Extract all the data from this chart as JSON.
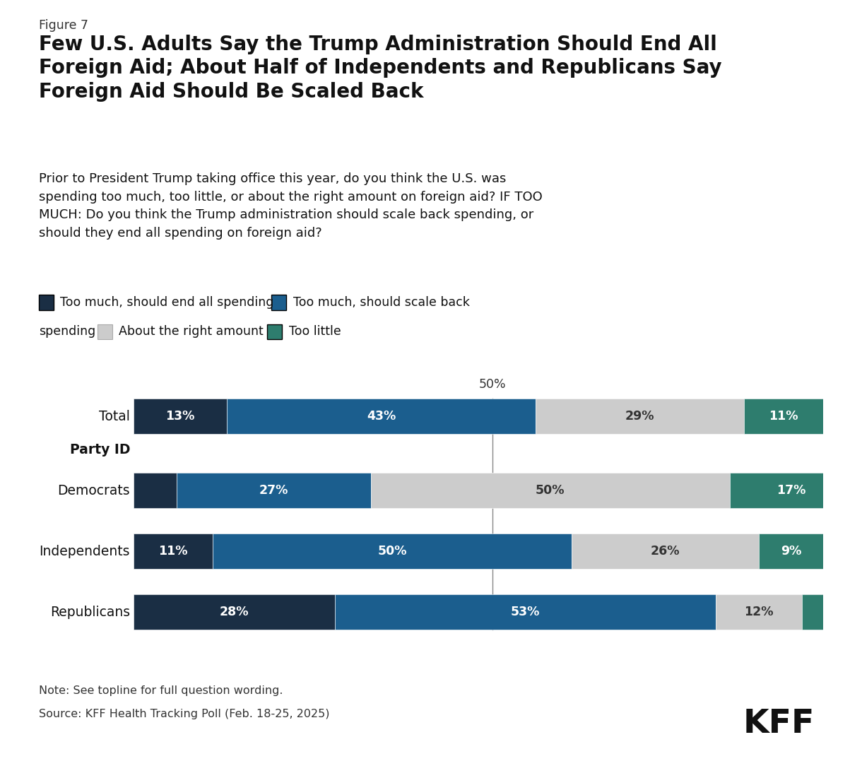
{
  "figure_label": "Figure 7",
  "title": "Few U.S. Adults Say the Trump Administration Should End All\nForeign Aid; About Half of Independents and Republicans Say\nForeign Aid Should Be Scaled Back",
  "subtitle": "Prior to President Trump taking office this year, do you think the U.S. was\nspending too much, too little, or about the right amount on foreign aid? IF TOO\nMUCH: Do you think the Trump administration should scale back spending, or\nshould they end all spending on foreign aid?",
  "colors": [
    "#1a2e44",
    "#1b5e8e",
    "#cccccc",
    "#2e7d6e"
  ],
  "data": {
    "Total": [
      13,
      43,
      29,
      11
    ],
    "Democrats": [
      6,
      27,
      50,
      17
    ],
    "Independents": [
      11,
      50,
      26,
      9
    ],
    "Republicans": [
      28,
      53,
      12,
      4
    ]
  },
  "bar_labels": {
    "Total": [
      "13%",
      "43%",
      "29%",
      "11%"
    ],
    "Democrats": [
      "",
      "27%",
      "50%",
      "17%"
    ],
    "Independents": [
      "11%",
      "50%",
      "26%",
      "9%"
    ],
    "Republicans": [
      "28%",
      "53%",
      "12%",
      ""
    ]
  },
  "note": "Note: See topline for full question wording.",
  "source": "Source: KFF Health Tracking Poll (Feb. 18-25, 2025)",
  "background_color": "#ffffff"
}
